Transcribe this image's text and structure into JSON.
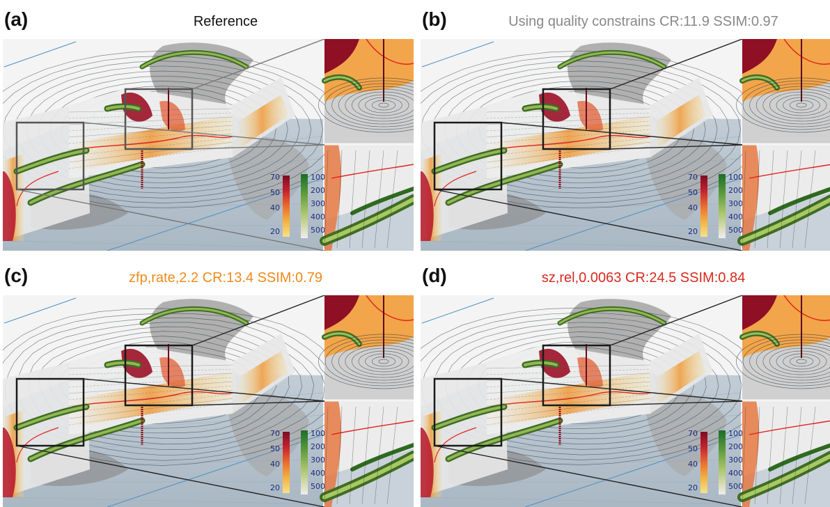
{
  "panels": [
    {
      "id": "a",
      "label": "(a)",
      "title": "Reference",
      "title_color": "#111111"
    },
    {
      "id": "b",
      "label": "(b)",
      "title": "Using quality constrains CR:11.9 SSIM:0.97",
      "title_color": "#888888"
    },
    {
      "id": "c",
      "label": "(c)",
      "title": "zfp,rate,2.2 CR:13.4 SSIM:0.79",
      "title_color": "#f08a1c"
    },
    {
      "id": "d",
      "label": "(d)",
      "title": "sz,rel,0.0063 CR:24.5 SSIM:0.84",
      "title_color": "#d62a1e"
    }
  ],
  "legend": {
    "wind_ticks": [
      "70",
      "50",
      "40",
      "20"
    ],
    "pressure_ticks": [
      "100",
      "200",
      "300",
      "400",
      "500"
    ],
    "wind_colors": [
      "#7a0d23",
      "#c8202e",
      "#ec6b2d",
      "#f5b23f",
      "#f7e28a"
    ],
    "pressure_colors": [
      "#1a6d2a",
      "#5d9a3a",
      "#a9c46a",
      "#d9ddb8",
      "#eeeeee"
    ]
  }
}
